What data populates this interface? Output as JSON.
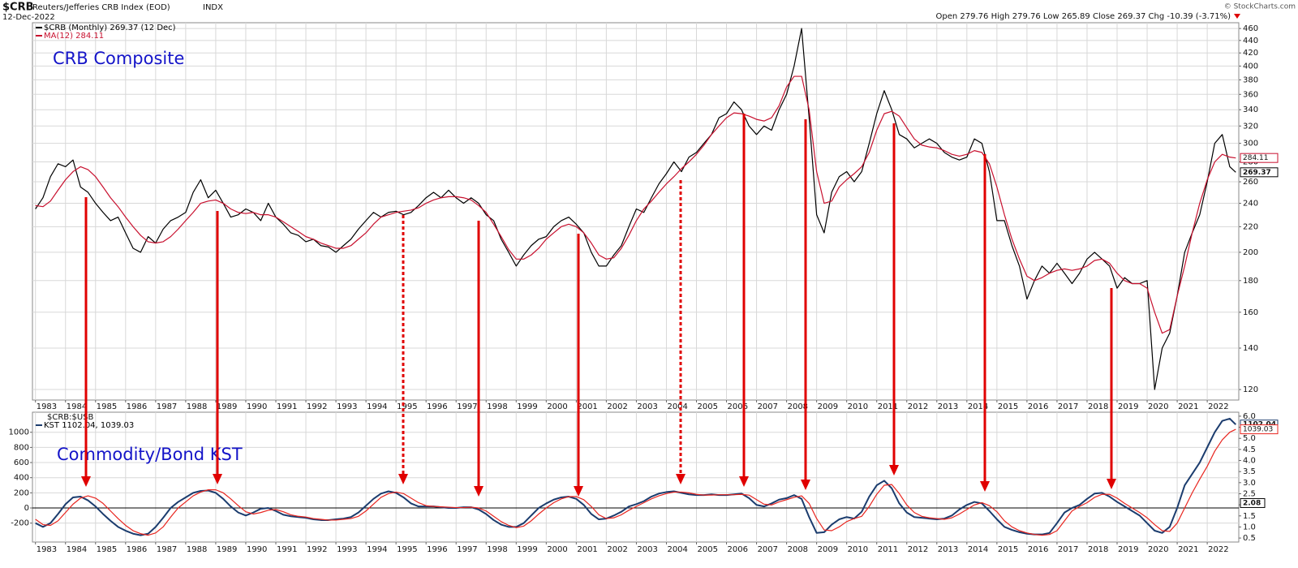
{
  "chart_data": [
    {
      "type": "line",
      "symbol": "$CRB",
      "title": "Reuters/Jefferies CRB Index (EOD)",
      "exchange": "INDX",
      "date": "12-Dec-2022",
      "quote": "Open 279.76 High 279.76 Low 265.89 Close 269.37 Chg -10.39 (-3.71%)",
      "credit": "© StockCharts.com",
      "annotation": "CRB Composite",
      "log_scale": true,
      "grid": true,
      "yaxis_side": "right",
      "xlim": [
        1982.9,
        2023.05
      ],
      "xticks": [
        1983,
        1984,
        1985,
        1986,
        1987,
        1988,
        1989,
        1990,
        1991,
        1992,
        1993,
        1994,
        1995,
        1996,
        1997,
        1998,
        1999,
        2000,
        2001,
        2002,
        2003,
        2004,
        2005,
        2006,
        2007,
        2008,
        2009,
        2010,
        2011,
        2012,
        2013,
        2014,
        2015,
        2016,
        2017,
        2018,
        2019,
        2020,
        2021,
        2022
      ],
      "ylim": [
        115.4,
        470
      ],
      "yticks": [
        120,
        140,
        160,
        180,
        200,
        220,
        240,
        260,
        280,
        300,
        320,
        340,
        360,
        380,
        400,
        420,
        440,
        460
      ],
      "x": [
        1983,
        1983.25,
        1983.5,
        1983.75,
        1984,
        1984.25,
        1984.5,
        1984.75,
        1985,
        1985.25,
        1985.5,
        1985.75,
        1986,
        1986.25,
        1986.5,
        1986.75,
        1987,
        1987.25,
        1987.5,
        1987.75,
        1988,
        1988.25,
        1988.5,
        1988.75,
        1989,
        1989.25,
        1989.5,
        1989.75,
        1990,
        1990.25,
        1990.5,
        1990.75,
        1991,
        1991.25,
        1991.5,
        1991.75,
        1992,
        1992.25,
        1992.5,
        1992.75,
        1993,
        1993.25,
        1993.5,
        1993.75,
        1994,
        1994.25,
        1994.5,
        1994.75,
        1995,
        1995.25,
        1995.5,
        1995.75,
        1996,
        1996.25,
        1996.5,
        1996.75,
        1997,
        1997.25,
        1997.5,
        1997.75,
        1998,
        1998.25,
        1998.5,
        1998.75,
        1999,
        1999.25,
        1999.5,
        1999.75,
        2000,
        2000.25,
        2000.5,
        2000.75,
        2001,
        2001.25,
        2001.5,
        2001.75,
        2002,
        2002.25,
        2002.5,
        2002.75,
        2003,
        2003.25,
        2003.5,
        2003.75,
        2004,
        2004.25,
        2004.5,
        2004.75,
        2005,
        2005.25,
        2005.5,
        2005.75,
        2006,
        2006.25,
        2006.5,
        2006.75,
        2007,
        2007.25,
        2007.5,
        2007.75,
        2008,
        2008.25,
        2008.5,
        2008.75,
        2009,
        2009.25,
        2009.5,
        2009.75,
        2010,
        2010.25,
        2010.5,
        2010.75,
        2011,
        2011.25,
        2011.5,
        2011.75,
        2012,
        2012.25,
        2012.5,
        2012.75,
        2013,
        2013.25,
        2013.5,
        2013.75,
        2014,
        2014.25,
        2014.5,
        2014.75,
        2015,
        2015.25,
        2015.5,
        2015.75,
        2016,
        2016.25,
        2016.5,
        2016.75,
        2017,
        2017.25,
        2017.5,
        2017.75,
        2018,
        2018.25,
        2018.5,
        2018.75,
        2019,
        2019.25,
        2019.5,
        2019.75,
        2020,
        2020.25,
        2020.5,
        2020.75,
        2021,
        2021.25,
        2021.5,
        2021.75,
        2022,
        2022.25,
        2022.5,
        2022.75,
        2022.95
      ],
      "series": [
        {
          "name": "$CRB (Monthly) 269.37 (12 Dec)",
          "color": "#000000",
          "values": [
            235,
            245,
            265,
            278,
            275,
            282,
            255,
            250,
            240,
            232,
            225,
            228,
            215,
            203,
            200,
            212,
            207,
            218,
            225,
            228,
            232,
            250,
            262,
            245,
            252,
            240,
            228,
            230,
            235,
            232,
            225,
            240,
            228,
            222,
            215,
            213,
            208,
            210,
            205,
            204,
            200,
            205,
            210,
            218,
            225,
            232,
            228,
            232,
            233,
            230,
            232,
            238,
            245,
            250,
            245,
            252,
            245,
            240,
            245,
            240,
            230,
            225,
            210,
            200,
            190,
            198,
            205,
            210,
            212,
            220,
            225,
            228,
            222,
            215,
            200,
            190,
            190,
            198,
            205,
            220,
            235,
            232,
            245,
            258,
            268,
            280,
            270,
            285,
            290,
            300,
            310,
            330,
            335,
            350,
            340,
            320,
            310,
            320,
            315,
            340,
            360,
            400,
            460,
            330,
            230,
            215,
            250,
            265,
            270,
            260,
            270,
            300,
            335,
            365,
            340,
            310,
            305,
            295,
            300,
            305,
            300,
            290,
            285,
            282,
            285,
            305,
            300,
            270,
            225,
            225,
            205,
            190,
            168,
            180,
            190,
            185,
            192,
            185,
            178,
            185,
            195,
            200,
            195,
            190,
            175,
            182,
            178,
            178,
            180,
            120,
            140,
            148,
            170,
            200,
            215,
            230,
            260,
            300,
            310,
            275,
            269.37
          ]
        },
        {
          "name": "MA(12) 284.11",
          "color": "#c8102e",
          "values": [
            238,
            237,
            242,
            252,
            262,
            270,
            275,
            272,
            265,
            255,
            245,
            237,
            228,
            220,
            213,
            208,
            207,
            208,
            212,
            218,
            225,
            232,
            240,
            242,
            243,
            240,
            235,
            232,
            231,
            232,
            230,
            230,
            228,
            224,
            220,
            216,
            212,
            210,
            207,
            205,
            203,
            203,
            205,
            210,
            215,
            222,
            228,
            230,
            232,
            233,
            234,
            236,
            240,
            243,
            245,
            246,
            246,
            245,
            243,
            238,
            232,
            222,
            212,
            202,
            195,
            195,
            198,
            203,
            210,
            215,
            220,
            222,
            220,
            215,
            207,
            198,
            195,
            196,
            203,
            213,
            225,
            235,
            242,
            250,
            258,
            265,
            273,
            280,
            288,
            298,
            310,
            320,
            330,
            336,
            335,
            332,
            328,
            326,
            330,
            345,
            370,
            385,
            385,
            340,
            270,
            240,
            242,
            255,
            262,
            268,
            275,
            290,
            315,
            335,
            338,
            332,
            318,
            305,
            298,
            296,
            295,
            292,
            288,
            286,
            288,
            292,
            290,
            278,
            255,
            230,
            210,
            195,
            183,
            180,
            182,
            185,
            187,
            188,
            187,
            188,
            190,
            194,
            195,
            192,
            185,
            180,
            178,
            178,
            175,
            160,
            148,
            150,
            170,
            190,
            215,
            240,
            262,
            280,
            288,
            285,
            284.11
          ]
        }
      ]
    },
    {
      "type": "line",
      "title": "$CRB:$USB",
      "annotation": "Commodity/Bond KST",
      "grid": true,
      "yaxis_side": "left",
      "xlim": [
        1982.9,
        2023.05
      ],
      "xticks": [
        1983,
        1984,
        1985,
        1986,
        1987,
        1988,
        1989,
        1990,
        1991,
        1992,
        1993,
        1994,
        1995,
        1996,
        1997,
        1998,
        1999,
        2000,
        2001,
        2002,
        2003,
        2004,
        2005,
        2006,
        2007,
        2008,
        2009,
        2010,
        2011,
        2012,
        2013,
        2014,
        2015,
        2016,
        2017,
        2018,
        2019,
        2020,
        2021,
        2022
      ],
      "ylim": [
        -450,
        1265
      ],
      "yticks": [
        -200,
        0,
        200,
        400,
        600,
        800,
        1000
      ],
      "y2lim": [
        0.32,
        6.18
      ],
      "y2ticks": [
        {
          "value": 0.5,
          "label": "0.5"
        },
        {
          "value": 1,
          "label": "1.0"
        },
        {
          "value": 1.5,
          "label": "1.5"
        },
        {
          "value": 2,
          "label": "2.0"
        },
        {
          "value": 2.5,
          "label": "2.5"
        },
        {
          "value": 3,
          "label": "3.0"
        },
        {
          "value": 3.5,
          "label": "3.5"
        },
        {
          "value": 4,
          "label": "4.0"
        },
        {
          "value": 4.5,
          "label": "4.5"
        },
        {
          "value": 5,
          "label": "5.0"
        },
        {
          "value": 5.5,
          "label": "5.5"
        },
        {
          "value": 6,
          "label": "6.0"
        }
      ],
      "y2_last": 2.08,
      "x": [
        1983,
        1983.25,
        1983.5,
        1983.75,
        1984,
        1984.25,
        1984.5,
        1984.75,
        1985,
        1985.25,
        1985.5,
        1985.75,
        1986,
        1986.25,
        1986.5,
        1986.75,
        1987,
        1987.25,
        1987.5,
        1987.75,
        1988,
        1988.25,
        1988.5,
        1988.75,
        1989,
        1989.25,
        1989.5,
        1989.75,
        1990,
        1990.25,
        1990.5,
        1990.75,
        1991,
        1991.25,
        1991.5,
        1991.75,
        1992,
        1992.25,
        1992.5,
        1992.75,
        1993,
        1993.25,
        1993.5,
        1993.75,
        1994,
        1994.25,
        1994.5,
        1994.75,
        1995,
        1995.25,
        1995.5,
        1995.75,
        1996,
        1996.25,
        1996.5,
        1996.75,
        1997,
        1997.25,
        1997.5,
        1997.75,
        1998,
        1998.25,
        1998.5,
        1998.75,
        1999,
        1999.25,
        1999.5,
        1999.75,
        2000,
        2000.25,
        2000.5,
        2000.75,
        2001,
        2001.25,
        2001.5,
        2001.75,
        2002,
        2002.25,
        2002.5,
        2002.75,
        2003,
        2003.25,
        2003.5,
        2003.75,
        2004,
        2004.25,
        2004.5,
        2004.75,
        2005,
        2005.25,
        2005.5,
        2005.75,
        2006,
        2006.25,
        2006.5,
        2006.75,
        2007,
        2007.25,
        2007.5,
        2007.75,
        2008,
        2008.25,
        2008.5,
        2008.75,
        2009,
        2009.25,
        2009.5,
        2009.75,
        2010,
        2010.25,
        2010.5,
        2010.75,
        2011,
        2011.25,
        2011.5,
        2011.75,
        2012,
        2012.25,
        2012.5,
        2012.75,
        2013,
        2013.25,
        2013.5,
        2013.75,
        2014,
        2014.25,
        2014.5,
        2014.75,
        2015,
        2015.25,
        2015.5,
        2015.75,
        2016,
        2016.25,
        2016.5,
        2016.75,
        2017,
        2017.25,
        2017.5,
        2017.75,
        2018,
        2018.25,
        2018.5,
        2018.75,
        2019,
        2019.25,
        2019.5,
        2019.75,
        2020,
        2020.25,
        2020.5,
        2020.75,
        2021,
        2021.25,
        2021.5,
        2021.75,
        2022,
        2022.25,
        2022.5,
        2022.75,
        2022.95
      ],
      "series": [
        {
          "name": "KST 1102.04, 1039.03",
          "color": "#1b3c6e",
          "values": [
            -200,
            -250,
            -200,
            -80,
            50,
            140,
            150,
            100,
            20,
            -80,
            -170,
            -250,
            -300,
            -340,
            -360,
            -340,
            -250,
            -130,
            0,
            80,
            140,
            200,
            225,
            230,
            200,
            120,
            20,
            -60,
            -100,
            -60,
            -10,
            0,
            -40,
            -90,
            -110,
            -120,
            -130,
            -150,
            -160,
            -160,
            -150,
            -140,
            -120,
            -60,
            30,
            120,
            190,
            220,
            200,
            140,
            60,
            20,
            20,
            20,
            10,
            0,
            0,
            10,
            10,
            -20,
            -80,
            -160,
            -220,
            -250,
            -250,
            -200,
            -100,
            0,
            60,
            110,
            140,
            150,
            120,
            40,
            -80,
            -150,
            -140,
            -100,
            -50,
            20,
            50,
            90,
            150,
            190,
            210,
            220,
            200,
            180,
            170,
            170,
            180,
            170,
            170,
            180,
            190,
            130,
            40,
            20,
            60,
            110,
            130,
            170,
            120,
            -120,
            -330,
            -320,
            -220,
            -150,
            -120,
            -140,
            -50,
            150,
            300,
            360,
            260,
            60,
            -60,
            -120,
            -130,
            -140,
            -150,
            -140,
            -100,
            -20,
            40,
            80,
            60,
            -40,
            -150,
            -250,
            -290,
            -320,
            -340,
            -350,
            -350,
            -330,
            -200,
            -60,
            0,
            40,
            120,
            190,
            200,
            150,
            80,
            20,
            -40,
            -100,
            -200,
            -300,
            -330,
            -250,
            0,
            300,
            450,
            600,
            800,
            1000,
            1150,
            1180,
            1102.04
          ]
        },
        {
          "color": "#e8251f",
          "values": [
            -150,
            -220,
            -230,
            -170,
            -60,
            50,
            130,
            160,
            130,
            60,
            -40,
            -140,
            -230,
            -300,
            -340,
            -360,
            -330,
            -250,
            -120,
            0,
            80,
            160,
            210,
            240,
            240,
            200,
            120,
            30,
            -50,
            -80,
            -60,
            -30,
            -20,
            -50,
            -90,
            -110,
            -120,
            -140,
            -150,
            -160,
            -160,
            -150,
            -140,
            -110,
            -40,
            50,
            140,
            190,
            210,
            190,
            130,
            70,
            30,
            20,
            15,
            10,
            5,
            5,
            10,
            0,
            -40,
            -110,
            -180,
            -230,
            -260,
            -240,
            -170,
            -80,
            0,
            70,
            120,
            150,
            150,
            110,
            20,
            -90,
            -140,
            -130,
            -90,
            -30,
            20,
            70,
            120,
            160,
            190,
            210,
            210,
            200,
            180,
            170,
            170,
            175,
            175,
            175,
            180,
            170,
            110,
            50,
            40,
            80,
            110,
            140,
            160,
            60,
            -140,
            -290,
            -300,
            -250,
            -180,
            -140,
            -110,
            20,
            180,
            300,
            310,
            190,
            40,
            -60,
            -110,
            -130,
            -140,
            -150,
            -130,
            -80,
            -20,
            40,
            70,
            30,
            -50,
            -170,
            -250,
            -300,
            -330,
            -350,
            -360,
            -350,
            -300,
            -170,
            -40,
            20,
            70,
            140,
            180,
            180,
            130,
            60,
            0,
            -60,
            -130,
            -220,
            -300,
            -310,
            -200,
            0,
            200,
            380,
            550,
            750,
            900,
            1000,
            1039.03
          ]
        }
      ]
    }
  ]
}
